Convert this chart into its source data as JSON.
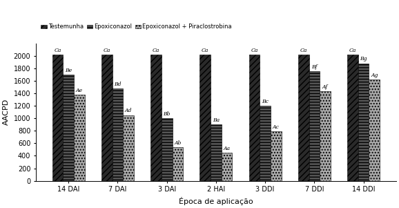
{
  "categories": [
    "14 DAI",
    "7 DAI",
    "3 DAI",
    "2 HAI",
    "3 DDI",
    "7 DDI",
    "14 DDI"
  ],
  "series": {
    "Testemunha": [
      2020,
      2020,
      2020,
      2020,
      2020,
      2020,
      2020
    ],
    "Epoxiconazol": [
      1700,
      1480,
      1000,
      900,
      1200,
      1750,
      1880
    ],
    "Epoxiconazol + Piraclostrobina": [
      1380,
      1050,
      540,
      450,
      790,
      1430,
      1620
    ]
  },
  "labels": {
    "Testemunha": [
      "Ca",
      "Ca",
      "Ca",
      "Ca",
      "Ca",
      "Ca",
      "Ca"
    ],
    "Epoxiconazol": [
      "Be",
      "Bd",
      "Bb",
      "Ba",
      "Bc",
      "Bf",
      "Bg"
    ],
    "Epoxiconazol + Piraclostrobina": [
      "Ae",
      "Ad",
      "Ab",
      "Aa",
      "Ac",
      "Af",
      "Ag"
    ]
  },
  "colors": {
    "Testemunha": "#2a2a2a",
    "Epoxiconazol": "#555555",
    "Epoxiconazol + Piraclostrobina": "#aaaaaa"
  },
  "hatches": {
    "Testemunha": "////",
    "Epoxiconazol": "----",
    "Epoxiconazol + Piraclostrobina": "...."
  },
  "ylabel": "AACPD",
  "xlabel": "Época de aplicação",
  "ylim": [
    0,
    2200
  ],
  "yticks": [
    0,
    200,
    400,
    600,
    800,
    1000,
    1200,
    1400,
    1600,
    1800,
    2000
  ],
  "legend_labels": [
    "Testemunha",
    "Epoxiconazol",
    "Epoxiconazol + Piraclostrobina"
  ],
  "bar_width": 0.22,
  "figsize": [
    5.78,
    3.01
  ],
  "dpi": 100
}
